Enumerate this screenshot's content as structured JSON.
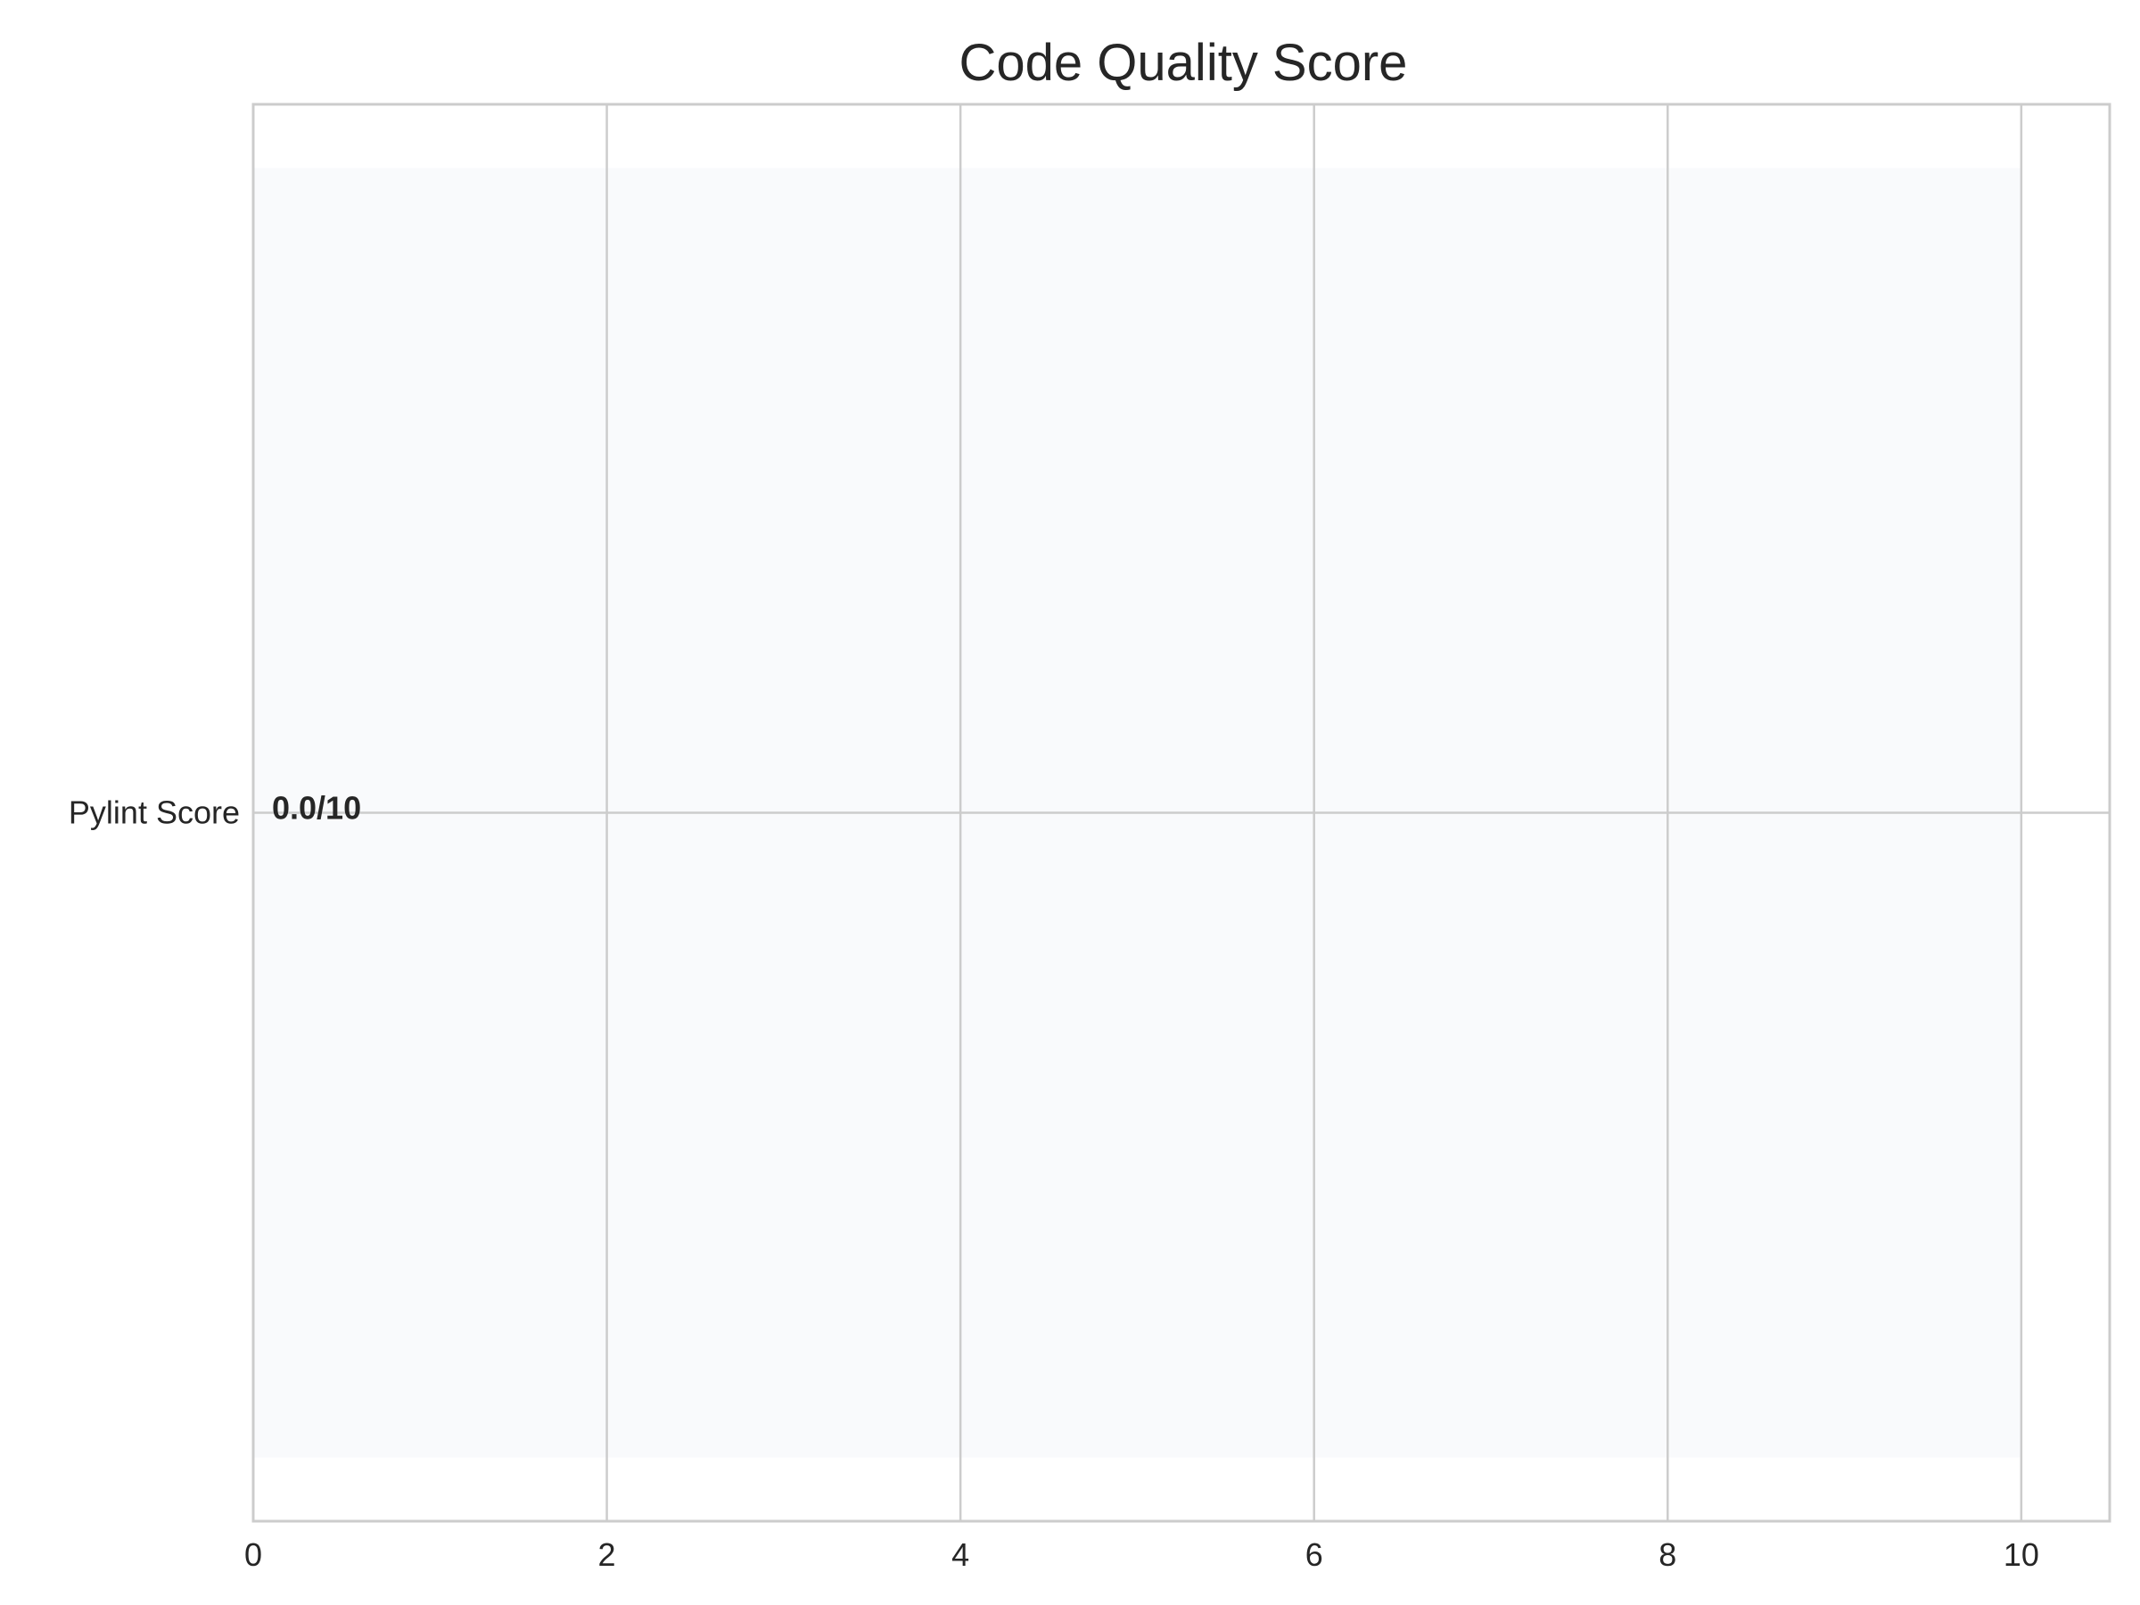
{
  "chart_data": {
    "type": "bar",
    "orientation": "horizontal",
    "title": "Code Quality Score",
    "xlabel": "",
    "ylabel": "",
    "categories": [
      "Pylint Score"
    ],
    "values": [
      0.0
    ],
    "max_value": 10,
    "value_labels": [
      "0.0/10"
    ],
    "xlim": [
      0,
      10.5
    ],
    "xticks": [
      0,
      2,
      4,
      6,
      8,
      10
    ],
    "xtick_labels": [
      "0",
      "2",
      "4",
      "6",
      "8",
      "10"
    ],
    "grid": true,
    "colors": {
      "background_band": "#f9fafc",
      "grid": "#cccccc",
      "axis": "#cccccc",
      "text": "#262626"
    }
  }
}
